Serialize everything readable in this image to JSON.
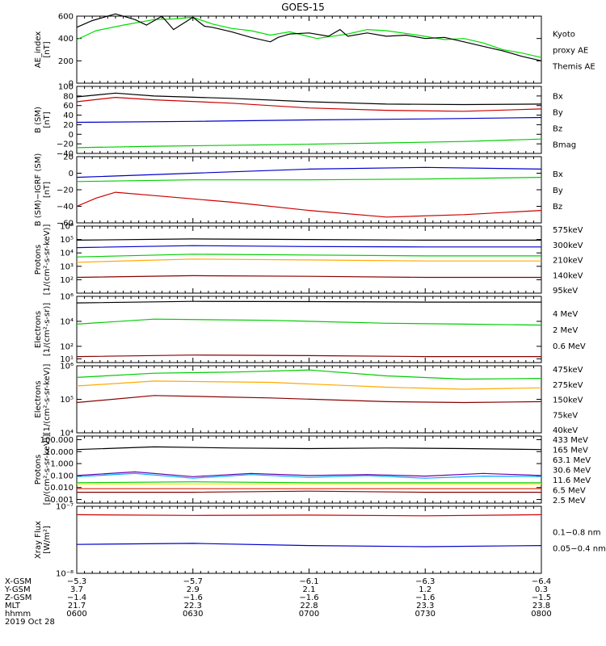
{
  "title": "GOES-15",
  "chart_data": [
    {
      "type": "line",
      "ylabel": [
        "AE_index",
        "[nT]"
      ],
      "ylim": [
        0,
        600
      ],
      "yscale": "linear",
      "yticks": [
        0,
        200,
        400,
        600
      ],
      "yticklabels": [
        "0",
        "200",
        "400",
        "600"
      ],
      "legend": [
        {
          "text": "Kyoto",
          "color": "#00dd00"
        },
        {
          "text": "proxy AE",
          "color": "#00dd00"
        },
        {
          "text": "Themis AE",
          "color": "#000000"
        }
      ],
      "series": [
        {
          "name": "Kyoto proxy AE",
          "color": "#00dd00",
          "x": [
            0,
            5,
            12,
            20,
            25,
            30,
            35,
            40,
            45,
            50,
            55,
            62,
            70,
            75,
            80,
            88,
            95,
            100,
            105,
            110,
            115,
            120
          ],
          "y": [
            390,
            470,
            520,
            570,
            575,
            590,
            530,
            490,
            470,
            430,
            460,
            400,
            440,
            480,
            470,
            430,
            390,
            400,
            360,
            300,
            270,
            230
          ]
        },
        {
          "name": "Themis AE",
          "color": "#000000",
          "x": [
            0,
            4,
            10,
            15,
            18,
            22,
            25,
            30,
            33,
            35,
            40,
            45,
            50,
            52,
            55,
            60,
            65,
            68,
            70,
            75,
            80,
            85,
            90,
            95,
            100,
            105,
            110,
            115,
            120
          ],
          "y": [
            500,
            560,
            620,
            570,
            520,
            600,
            480,
            590,
            510,
            500,
            460,
            410,
            370,
            410,
            440,
            450,
            420,
            480,
            420,
            450,
            420,
            430,
            400,
            410,
            370,
            330,
            290,
            240,
            200
          ]
        }
      ]
    },
    {
      "type": "line",
      "ylabel": [
        "B (SM)",
        "[nT]"
      ],
      "ylim": [
        -40,
        100
      ],
      "yscale": "linear",
      "yticks": [
        -40,
        -20,
        0,
        20,
        40,
        60,
        80,
        100
      ],
      "yticklabels": [
        "−40",
        "−20",
        "0",
        "20",
        "40",
        "60",
        "80",
        "100"
      ],
      "legend": [
        {
          "text": "Bx",
          "color": "#0000cc"
        },
        {
          "text": "By",
          "color": "#00cc00"
        },
        {
          "text": "Bz",
          "color": "#cc0000"
        },
        {
          "text": "Bmag",
          "color": "#000000"
        }
      ],
      "series": [
        {
          "name": "Bx",
          "color": "#0000cc",
          "x": [
            0,
            30,
            60,
            90,
            120
          ],
          "y": [
            25,
            27,
            30,
            32,
            35
          ]
        },
        {
          "name": "By",
          "color": "#00cc00",
          "x": [
            0,
            20,
            50,
            80,
            100,
            120
          ],
          "y": [
            -28,
            -25,
            -22,
            -18,
            -15,
            -10
          ]
        },
        {
          "name": "Bz",
          "color": "#cc0000",
          "x": [
            0,
            10,
            20,
            40,
            60,
            80,
            100,
            120
          ],
          "y": [
            68,
            77,
            72,
            65,
            55,
            50,
            48,
            53
          ]
        },
        {
          "name": "Bmag",
          "color": "#000000",
          "x": [
            0,
            10,
            20,
            40,
            60,
            80,
            100,
            120
          ],
          "y": [
            78,
            86,
            80,
            75,
            68,
            63,
            62,
            63
          ]
        }
      ]
    },
    {
      "type": "line",
      "ylabel": [
        "B (SM)−IGRF (SM)",
        "[nT]"
      ],
      "ylim": [
        -60,
        20
      ],
      "yscale": "linear",
      "yticks": [
        -60,
        -40,
        -20,
        0,
        20
      ],
      "yticklabels": [
        "−60",
        "−40",
        "−20",
        "0",
        "20"
      ],
      "legend": [
        {
          "text": "Bx",
          "color": "#0000cc"
        },
        {
          "text": "By",
          "color": "#00cc00"
        },
        {
          "text": "Bz",
          "color": "#cc0000"
        }
      ],
      "series": [
        {
          "name": "Bx",
          "color": "#0000cc",
          "x": [
            0,
            30,
            60,
            90,
            120
          ],
          "y": [
            -5,
            0,
            5,
            7,
            5
          ]
        },
        {
          "name": "By",
          "color": "#00cc00",
          "x": [
            0,
            30,
            60,
            90,
            120
          ],
          "y": [
            -10,
            -8,
            -8,
            -7,
            -5
          ]
        },
        {
          "name": "Bz",
          "color": "#cc0000",
          "x": [
            0,
            5,
            10,
            20,
            40,
            60,
            80,
            100,
            120
          ],
          "y": [
            -40,
            -30,
            -23,
            -27,
            -35,
            -45,
            -53,
            -50,
            -45
          ]
        }
      ]
    },
    {
      "type": "line",
      "ylabel": [
        "Protons",
        "[1/(cm²-s-sr-keV)]"
      ],
      "ylim": [
        10,
        1000000
      ],
      "yscale": "log",
      "yticks": [
        100,
        1000,
        10000,
        100000,
        1000000
      ],
      "yticklabels": [
        "10²",
        "10³",
        "10⁴",
        "10⁵",
        "10⁶"
      ],
      "legend": [
        {
          "text": "575keV",
          "color": "#880000"
        },
        {
          "text": "300keV",
          "color": "#ffaa00"
        },
        {
          "text": "210keV",
          "color": "#00cc00"
        },
        {
          "text": "140keV",
          "color": "#0000cc"
        },
        {
          "text": "95keV",
          "color": "#000000"
        }
      ],
      "series": [
        {
          "name": "575keV",
          "color": "#880000",
          "x": [
            0,
            30,
            60,
            90,
            120
          ],
          "y": [
            150,
            200,
            180,
            150,
            150
          ]
        },
        {
          "name": "300keV",
          "color": "#ffaa00",
          "x": [
            0,
            30,
            60,
            90,
            120
          ],
          "y": [
            2000,
            3500,
            3000,
            2500,
            2500
          ]
        },
        {
          "name": "210keV",
          "color": "#00cc00",
          "x": [
            0,
            30,
            60,
            90,
            120
          ],
          "y": [
            5000,
            8000,
            7000,
            6000,
            6000
          ]
        },
        {
          "name": "140keV",
          "color": "#0000cc",
          "x": [
            0,
            30,
            60,
            90,
            120
          ],
          "y": [
            25000,
            35000,
            30000,
            28000,
            28000
          ]
        },
        {
          "name": "95keV",
          "color": "#000000",
          "x": [
            0,
            30,
            60,
            90,
            120
          ],
          "y": [
            90000,
            110000,
            100000,
            90000,
            90000
          ]
        }
      ]
    },
    {
      "type": "line",
      "ylabel": [
        "Electrons",
        "[1/(cm²-s-sr)]"
      ],
      "ylim": [
        5,
        1000000
      ],
      "yscale": "log",
      "yticks": [
        10,
        100,
        10000,
        1000000
      ],
      "yticklabels": [
        "10¹",
        "10²",
        "10⁴",
        "10⁶"
      ],
      "legend": [
        {
          "text": "4 MeV",
          "color": "#880000"
        },
        {
          "text": "2 MeV",
          "color": "#00cc00"
        },
        {
          "text": "0.6 MeV",
          "color": "#000000"
        }
      ],
      "series": [
        {
          "name": "4 MeV",
          "color": "#880000",
          "x": [
            0,
            30,
            60,
            90,
            120
          ],
          "y": [
            15,
            20,
            18,
            15,
            15
          ]
        },
        {
          "name": "2 MeV",
          "color": "#00cc00",
          "x": [
            0,
            20,
            50,
            80,
            100,
            120
          ],
          "y": [
            6000,
            15000,
            12000,
            7000,
            6000,
            5000
          ]
        },
        {
          "name": "0.6 MeV",
          "color": "#000000",
          "x": [
            0,
            30,
            60,
            90,
            120
          ],
          "y": [
            300000,
            400000,
            380000,
            350000,
            350000
          ]
        }
      ]
    },
    {
      "type": "line",
      "ylabel": [
        "Electrons",
        "[1/(cm²-s-sr-keV)]"
      ],
      "ylim": [
        10000,
        1000000
      ],
      "yscale": "log",
      "yticks": [
        10000,
        100000,
        1000000
      ],
      "yticklabels": [
        "10⁴",
        "10⁵",
        "10⁶"
      ],
      "legend": [
        {
          "text": "475keV",
          "color": "#880000"
        },
        {
          "text": "275keV",
          "color": "#ffaa00"
        },
        {
          "text": "150keV",
          "color": "#00cc00"
        },
        {
          "text": "75keV",
          "color": "#0000cc"
        },
        {
          "text": "40keV",
          "color": "#000000"
        }
      ],
      "series": [
        {
          "name": "475keV",
          "color": "#880000",
          "x": [
            0,
            20,
            50,
            80,
            100,
            120
          ],
          "y": [
            80000,
            130000,
            110000,
            85000,
            80000,
            85000
          ]
        },
        {
          "name": "275keV",
          "color": "#ffaa00",
          "x": [
            0,
            20,
            50,
            80,
            100,
            120
          ],
          "y": [
            250000,
            350000,
            320000,
            230000,
            200000,
            220000
          ]
        },
        {
          "name": "150keV",
          "color": "#00cc00",
          "x": [
            0,
            20,
            40,
            60,
            80,
            100,
            120
          ],
          "y": [
            450000,
            600000,
            650000,
            750000,
            500000,
            400000,
            420000
          ]
        }
      ]
    },
    {
      "type": "line",
      "ylabel": [
        "Protons",
        "[p/(cm²-s-sr-keV)]"
      ],
      "ylim": [
        0.0005,
        200
      ],
      "yscale": "log",
      "yticks": [
        0.001,
        0.01,
        0.1,
        1.0,
        10.0,
        100.0
      ],
      "yticklabels": [
        "0.001",
        "0.010",
        "0.100",
        "1.000",
        "10.000",
        "100.000"
      ],
      "legend": [
        {
          "text": "433 MeV",
          "color": "#880000"
        },
        {
          "text": "165 MeV",
          "color": "#dd2200"
        },
        {
          "text": "63.1 MeV",
          "color": "#ffdd00"
        },
        {
          "text": "30.6 MeV",
          "color": "#00cc00"
        },
        {
          "text": "11.6 MeV",
          "color": "#00aaff"
        },
        {
          "text": "6.5 MeV",
          "color": "#6600aa"
        },
        {
          "text": "2.5 MeV",
          "color": "#000000"
        }
      ],
      "series": [
        {
          "name": "433 MeV",
          "color": "#880000",
          "x": [
            0,
            30,
            60,
            90,
            120
          ],
          "y": [
            0.004,
            0.004,
            0.005,
            0.004,
            0.004
          ]
        },
        {
          "name": "165 MeV",
          "color": "#dd2200",
          "x": [
            0,
            30,
            60,
            90,
            120
          ],
          "y": [
            0.008,
            0.008,
            0.008,
            0.008,
            0.008
          ]
        },
        {
          "name": "63.1 MeV",
          "color": "#ffdd00",
          "x": [
            0,
            30,
            60,
            90,
            120
          ],
          "y": [
            0.02,
            0.02,
            0.02,
            0.02,
            0.02
          ]
        },
        {
          "name": "30.6 MeV",
          "color": "#00cc00",
          "x": [
            0,
            30,
            60,
            90,
            120
          ],
          "y": [
            0.025,
            0.03,
            0.025,
            0.025,
            0.025
          ]
        },
        {
          "name": "11.6 MeV",
          "color": "#00aaff",
          "x": [
            0,
            15,
            30,
            45,
            60,
            75,
            90,
            105,
            120
          ],
          "y": [
            0.08,
            0.15,
            0.06,
            0.12,
            0.07,
            0.1,
            0.06,
            0.09,
            0.08
          ]
        },
        {
          "name": "6.5 MeV",
          "color": "#6600aa",
          "x": [
            0,
            15,
            30,
            45,
            60,
            75,
            90,
            105,
            120
          ],
          "y": [
            0.1,
            0.2,
            0.08,
            0.15,
            0.1,
            0.12,
            0.09,
            0.15,
            0.1
          ]
        },
        {
          "name": "2.5 MeV",
          "color": "#000000",
          "x": [
            0,
            20,
            40,
            60,
            80,
            100,
            120
          ],
          "y": [
            15,
            25,
            20,
            18,
            20,
            18,
            15
          ]
        }
      ]
    },
    {
      "type": "line",
      "ylabel": [
        "Xray Flux",
        "[W/m²]"
      ],
      "ylim": [
        1e-08,
        1e-07
      ],
      "yscale": "log",
      "yticks": [
        1e-08,
        1e-07
      ],
      "yticklabels": [
        "10⁻⁸",
        "10⁻⁷"
      ],
      "legend": [
        {
          "text": "0.1−0.8 nm",
          "color": "#cc0000"
        },
        {
          "text": "0.05−0.4 nm",
          "color": "#0000cc"
        }
      ],
      "series": [
        {
          "name": "0.1−0.8 nm",
          "color": "#cc0000",
          "x": [
            0,
            30,
            60,
            90,
            120
          ],
          "y": [
            7.5e-08,
            7.3e-08,
            7.4e-08,
            7.2e-08,
            7.5e-08
          ]
        },
        {
          "name": "0.05−0.4 nm",
          "color": "#0000cc",
          "x": [
            0,
            30,
            60,
            90,
            120
          ],
          "y": [
            2.7e-08,
            2.8e-08,
            2.6e-08,
            2.5e-08,
            2.6e-08
          ]
        }
      ]
    }
  ],
  "xaxis": {
    "row_labels": [
      "X-GSM",
      "Y-GSM",
      "Z-GSM",
      "MLT",
      "hhmm"
    ],
    "date": "2019 Oct 28",
    "columns": [
      [
        "−5.3",
        "3.7",
        "−1.4",
        "21.7",
        "0600"
      ],
      [
        "−5.7",
        "2.9",
        "−1.6",
        "22.3",
        "0630"
      ],
      [
        "−6.1",
        "2.1",
        "−1.6",
        "22.8",
        "0700"
      ],
      [
        "−6.3",
        "1.2",
        "−1.6",
        "23.3",
        "0730"
      ],
      [
        "−6.4",
        "0.3",
        "−1.5",
        "23.8",
        "0800"
      ]
    ]
  }
}
